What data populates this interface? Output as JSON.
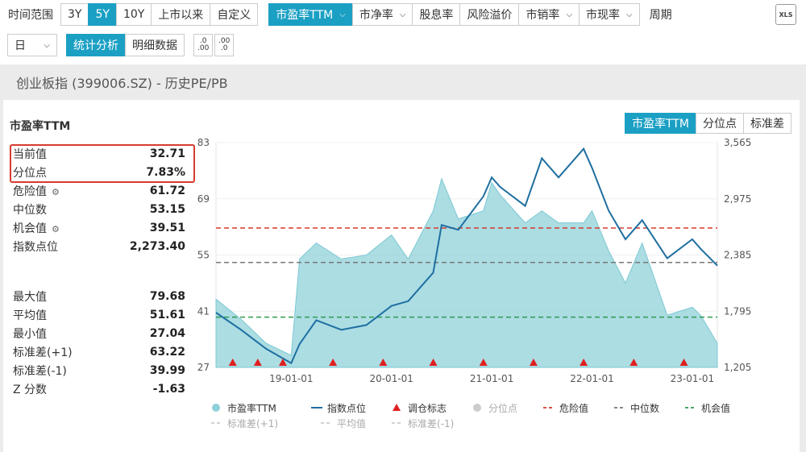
{
  "toolbar": {
    "range_label": "时间范围",
    "ranges": [
      "3Y",
      "5Y",
      "10Y",
      "上市以来",
      "自定义"
    ],
    "metrics": [
      "市盈率TTM",
      "市净率",
      "股息率",
      "风险溢价",
      "市销率",
      "市现率"
    ],
    "period_label": "周期",
    "period_value": "日",
    "mode_buttons": [
      "统计分析",
      "明细数据"
    ],
    "decimal_left": ".0 .00",
    "decimal_right": ".00 .0",
    "export_label": "XLS"
  },
  "header": {
    "title": "创业板指 (399006.SZ) - 历史PE/PB"
  },
  "panel": {
    "title": "市盈率TTM",
    "tabs": [
      "市盈率TTM",
      "分位点",
      "标准差"
    ],
    "stats_top": [
      {
        "label": "当前值",
        "value": "32.71"
      },
      {
        "label": "分位点",
        "value": "7.83%"
      },
      {
        "label": "危险值",
        "value": "61.72"
      },
      {
        "label": "中位数",
        "value": "53.15"
      },
      {
        "label": "机会值",
        "value": "39.51"
      },
      {
        "label": "指数点位",
        "value": "2,273.40"
      }
    ],
    "stats_bottom": [
      {
        "label": "最大值",
        "value": "79.68"
      },
      {
        "label": "平均值",
        "value": "51.61"
      },
      {
        "label": "最小值",
        "value": "27.04"
      },
      {
        "label": "标准差(+1)",
        "value": "63.22"
      },
      {
        "label": "标准差(-1)",
        "value": "39.99"
      },
      {
        "label": "Z 分数",
        "value": "-1.63"
      }
    ]
  },
  "chart_data": {
    "type": "area",
    "x_ticks": [
      "19-01-01",
      "20-01-01",
      "21-01-01",
      "22-01-01",
      "23-01-01"
    ],
    "y_left_ticks": [
      27,
      41,
      55,
      69,
      83
    ],
    "y_right_ticks": [
      "1,205",
      "1,795",
      "2,385",
      "2,975",
      "3,565"
    ],
    "ylim_left": [
      27,
      83
    ],
    "ylim_right": [
      1205,
      3565
    ],
    "x": [
      "18-04",
      "18-07",
      "18-10",
      "19-01",
      "19-02",
      "19-04",
      "19-07",
      "19-10",
      "20-01",
      "20-03",
      "20-06",
      "20-07",
      "20-09",
      "20-12",
      "21-01",
      "21-02",
      "21-05",
      "21-07",
      "21-09",
      "21-12",
      "22-01",
      "22-03",
      "22-05",
      "22-07",
      "22-10",
      "23-01",
      "23-02",
      "23-04"
    ],
    "series": [
      {
        "name": "市盈率TTM",
        "color": "#8fd1da",
        "values": [
          44,
          39,
          33,
          30,
          54,
          58,
          54,
          55,
          60,
          54,
          66,
          74,
          64,
          66,
          73,
          70,
          63,
          66,
          63,
          63,
          66,
          56,
          48,
          58,
          40,
          42,
          40,
          33
        ]
      },
      {
        "name": "指数点位",
        "color": "#1f6fa0",
        "values": [
          1780,
          1600,
          1400,
          1250,
          1450,
          1700,
          1600,
          1650,
          1850,
          1900,
          2200,
          2700,
          2650,
          3000,
          3200,
          3100,
          2900,
          3400,
          3200,
          3500,
          3300,
          2850,
          2550,
          2750,
          2350,
          2550,
          2450,
          2273
        ]
      }
    ],
    "reference_lines": [
      {
        "name": "危险值",
        "value": 61.72,
        "color": "#d63b2f"
      },
      {
        "name": "中位数",
        "value": 53.15,
        "color": "#777777"
      },
      {
        "name": "机会值",
        "value": 39.51,
        "color": "#2e9a4e"
      }
    ],
    "rebalance_markers": [
      "18-06",
      "18-09",
      "18-12",
      "19-06",
      "19-12",
      "20-06",
      "20-12",
      "21-06",
      "21-12",
      "22-06",
      "22-12"
    ],
    "legend": [
      {
        "name": "市盈率TTM",
        "style": "dot",
        "color": "#8fd1da"
      },
      {
        "name": "指数点位",
        "style": "line",
        "color": "#1f6fa0"
      },
      {
        "name": "调仓标志",
        "style": "triangle",
        "color": "#e02020"
      },
      {
        "name": "分位点",
        "style": "dot",
        "color": "#cccccc"
      },
      {
        "name": "危险值",
        "style": "dash",
        "color": "#d63b2f"
      },
      {
        "name": "中位数",
        "style": "dash",
        "color": "#777777"
      },
      {
        "name": "机会值",
        "style": "dash",
        "color": "#2e9a4e"
      },
      {
        "name": "标准差(+1)",
        "style": "dash",
        "color": "#cccccc"
      },
      {
        "name": "平均值",
        "style": "dash",
        "color": "#cccccc"
      },
      {
        "name": "标准差(-1)",
        "style": "dash",
        "color": "#cccccc"
      }
    ],
    "legend_position": "bottom"
  }
}
